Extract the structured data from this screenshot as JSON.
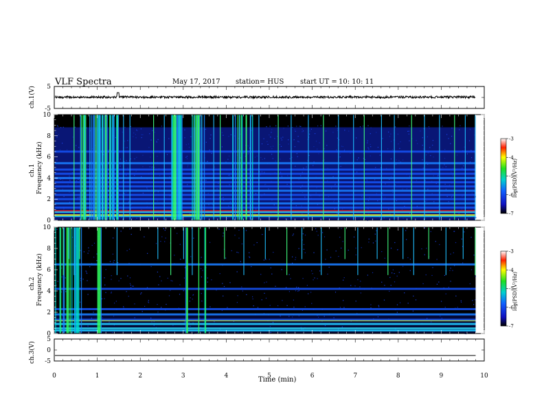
{
  "header": {
    "title": "VLF Spectra",
    "date": "May 17, 2017",
    "station": "station= HUS",
    "start_label": "start  UT =",
    "start_time": "10: 10: 11"
  },
  "colors": {
    "background": "#ffffff",
    "spectrogram_floor": "#000000",
    "waveform": "#000000"
  },
  "chart_data": [
    {
      "type": "line",
      "panel": "ch1-waveform",
      "ylabel": "ch.1(V)",
      "xlim": [
        0,
        10
      ],
      "ylim": [
        -5,
        5
      ],
      "yticks": [
        "5",
        "-5"
      ],
      "baseline_value": 0,
      "description_values": {
        "x": [
          0,
          1.5,
          3,
          4.5,
          6,
          7.5,
          9,
          9.8
        ],
        "y": [
          0,
          0.3,
          0.1,
          0.2,
          0,
          0.1,
          0,
          0
        ]
      }
    },
    {
      "type": "heatmap",
      "panel": "ch1-spectrogram",
      "ylabel_top": "ch.1",
      "ylabel": "Frequency (kHz)",
      "xlim": [
        0,
        10
      ],
      "ylim": [
        0,
        10
      ],
      "yticks": [
        "0",
        "2",
        "4",
        "6",
        "8",
        "10"
      ],
      "data_end_min": 9.8,
      "colorbar": {
        "label": "log(PSD)(V²/Hz)",
        "range": [
          -7,
          -3
        ],
        "ticks": [
          "-3",
          "-4",
          "-5",
          "-6",
          "-7"
        ]
      },
      "persistent_bands_khz": [
        0.4,
        0.8,
        1.2,
        1.6,
        2.0,
        2.4,
        2.8,
        3.2,
        3.6,
        4.0,
        4.4,
        4.8,
        5.4,
        6.5
      ],
      "strong_burst_intervals_min": [
        [
          0.6,
          1.5
        ],
        [
          2.7,
          3.0
        ],
        [
          3.2,
          3.5
        ],
        [
          4.1,
          4.6
        ]
      ],
      "sferic_times_min": [
        0.45,
        0.7,
        0.82,
        0.95,
        1.05,
        1.12,
        1.2,
        1.3,
        1.38,
        1.46,
        1.6,
        1.75,
        2.3,
        2.55,
        2.72,
        2.8,
        2.9,
        3.25,
        3.33,
        3.42,
        3.7,
        3.85,
        4.15,
        4.3,
        4.45,
        4.55,
        4.75,
        5.2,
        5.5,
        5.9,
        6.25,
        6.6,
        6.95,
        7.2,
        7.6,
        7.9,
        8.3,
        8.6,
        8.95,
        9.3,
        9.55,
        9.78
      ]
    },
    {
      "type": "heatmap",
      "panel": "ch2-spectrogram",
      "ylabel_top": "ch.2",
      "ylabel": "Frequency (kHz)",
      "xlim": [
        0,
        10
      ],
      "ylim": [
        0,
        10
      ],
      "yticks": [
        "0",
        "2",
        "4",
        "6",
        "8",
        "10"
      ],
      "data_end_min": 9.8,
      "colorbar": {
        "label": "log(PSD)(V²/Hz)",
        "range": [
          -7,
          -3
        ],
        "ticks": [
          "-3",
          "-4",
          "-5",
          "-6",
          "-7"
        ]
      },
      "persistent_bands_khz": [
        0.3,
        0.9,
        1.3,
        1.8,
        2.3,
        4.2,
        6.5
      ],
      "strong_burst_intervals_min": [
        [
          0.0,
          0.65
        ],
        [
          1.0,
          1.08
        ],
        [
          3.05,
          3.12
        ],
        [
          3.35,
          3.52
        ]
      ],
      "sferic_times_min": [
        0.2,
        0.33,
        0.45,
        0.58,
        1.45,
        2.4,
        2.7,
        3.0,
        3.2,
        3.95,
        4.4,
        4.9,
        5.4,
        5.75,
        6.2,
        6.75,
        7.05,
        7.5,
        7.75,
        8.1,
        8.35,
        8.7,
        9.1,
        9.5,
        9.78
      ]
    },
    {
      "type": "line",
      "panel": "ch3-waveform",
      "ylabel": "ch.3(V)",
      "xlabel": "Time (min)",
      "xlim": [
        0,
        10
      ],
      "ylim": [
        -5,
        5
      ],
      "yticks": [
        "5",
        "0",
        "-5"
      ],
      "xticks": [
        "0",
        "1",
        "2",
        "3",
        "4",
        "5",
        "6",
        "7",
        "8",
        "9",
        "10"
      ],
      "constant_value": -2.5,
      "data_end_min": 9.8
    }
  ]
}
